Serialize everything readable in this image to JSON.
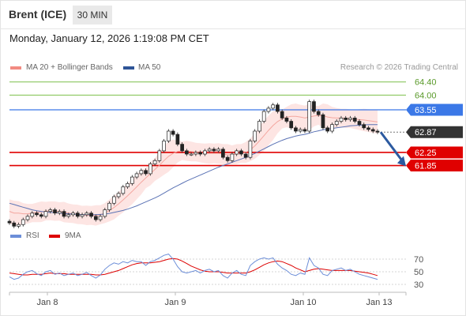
{
  "header": {
    "instrument": "Brent (ICE)",
    "timeframe": "30 MIN",
    "datetime": "Monday, January 12, 2026 1:19:08 PM CET"
  },
  "legend": {
    "bollinger": "MA 20 + Bollinger Bands",
    "ma50": "MA 50",
    "credit": "Research © 2026 Trading Central",
    "rsi": "RSI",
    "rsi_ma": "9MA"
  },
  "colors": {
    "bollinger": "#f28b82",
    "ma50": "#2f5597",
    "rsi": "#6c8ed8",
    "rsi_ma": "#dd0000",
    "resistance": "#7cbf4a",
    "pivot": "#3b78e7",
    "support": "#e00000",
    "current": "#333333",
    "arrow": "#2c5aa0"
  },
  "chart_data": [
    {
      "type": "candlestick",
      "x_ticks": [
        "Jan 8",
        "Jan 9",
        "Jan 10",
        "Jan 13"
      ],
      "ylim": [
        59.9,
        64.6
      ],
      "levels": [
        {
          "value": "64.40",
          "role": "resistance"
        },
        {
          "value": "64.00",
          "role": "resistance"
        },
        {
          "value": "63.55",
          "role": "pivot"
        },
        {
          "value": "62.87",
          "role": "current"
        },
        {
          "value": "62.25",
          "role": "support"
        },
        {
          "value": "61.85",
          "role": "support"
        }
      ],
      "close_path": [
        60.1,
        60.0,
        60.05,
        60.2,
        60.3,
        60.4,
        60.35,
        60.3,
        60.45,
        60.5,
        60.4,
        60.45,
        60.3,
        60.35,
        60.4,
        60.3,
        60.35,
        60.4,
        60.3,
        60.2,
        60.3,
        60.5,
        60.7,
        60.9,
        61.0,
        61.2,
        61.3,
        61.5,
        61.6,
        61.7,
        61.6,
        61.9,
        62.0,
        62.3,
        62.6,
        62.9,
        62.8,
        62.5,
        62.3,
        62.2,
        62.2,
        62.25,
        62.2,
        62.3,
        62.35,
        62.3,
        62.35,
        62.1,
        62.0,
        62.2,
        62.3,
        62.2,
        62.1,
        62.6,
        62.9,
        63.2,
        63.5,
        63.6,
        63.7,
        63.5,
        63.3,
        63.2,
        63.0,
        62.9,
        62.95,
        62.9,
        63.8,
        63.5,
        63.4,
        63.0,
        62.9,
        63.1,
        63.2,
        63.3,
        63.25,
        63.3,
        63.2,
        63.1,
        63.0,
        62.95,
        62.9,
        62.87
      ],
      "ma20": [
        60.45,
        60.4,
        60.4,
        60.38,
        60.38,
        60.4,
        60.42,
        60.44,
        60.46,
        60.47,
        60.46,
        60.45,
        60.43,
        60.4,
        60.38,
        60.36,
        60.34,
        60.33,
        60.33,
        60.33,
        60.35,
        60.4,
        60.48,
        60.57,
        60.68,
        60.8,
        60.93,
        61.06,
        61.2,
        61.34,
        61.47,
        61.6,
        61.73,
        61.86,
        62.0,
        62.13,
        62.22,
        62.28,
        62.3,
        62.3,
        62.28,
        62.26,
        62.24,
        62.22,
        62.22,
        62.22,
        62.22,
        62.2,
        62.18,
        62.18,
        62.2,
        62.22,
        62.25,
        62.33,
        62.45,
        62.6,
        62.76,
        62.92,
        63.07,
        63.19,
        63.27,
        63.33,
        63.35,
        63.35,
        63.33,
        63.3,
        63.33,
        63.36,
        63.38,
        63.37,
        63.33,
        63.31,
        63.3,
        63.3,
        63.29,
        63.28,
        63.26,
        63.25,
        63.24,
        63.22,
        63.2,
        63.18
      ],
      "ma50": [
        60.7,
        60.66,
        60.62,
        60.58,
        60.54,
        60.5,
        60.47,
        60.45,
        60.43,
        60.42,
        60.41,
        60.4,
        60.39,
        60.38,
        60.37,
        60.36,
        60.35,
        60.35,
        60.35,
        60.35,
        60.36,
        60.37,
        60.39,
        60.42,
        60.45,
        60.48,
        60.52,
        60.57,
        60.62,
        60.68,
        60.74,
        60.8,
        60.86,
        60.93,
        61.01,
        61.09,
        61.17,
        61.24,
        61.31,
        61.38,
        61.44,
        61.5,
        61.56,
        61.62,
        61.68,
        61.74,
        61.8,
        61.85,
        61.9,
        61.95,
        62.0,
        62.05,
        62.1,
        62.16,
        62.22,
        62.29,
        62.36,
        62.43,
        62.5,
        62.56,
        62.62,
        62.67,
        62.71,
        62.75,
        62.78,
        62.8,
        62.84,
        62.88,
        62.91,
        62.94,
        62.96,
        62.98,
        63.0,
        63.02,
        63.04,
        63.06,
        63.07,
        63.08,
        63.09,
        63.1,
        63.1,
        63.1
      ],
      "projection": {
        "from": 62.87,
        "to": 61.85
      }
    },
    {
      "type": "line",
      "name": "RSI",
      "ylim": [
        20,
        80
      ],
      "y_ticks": [
        "70",
        "50",
        "30"
      ],
      "rsi": [
        42,
        38,
        40,
        46,
        50,
        52,
        47,
        44,
        50,
        52,
        46,
        48,
        44,
        46,
        48,
        44,
        46,
        49,
        44,
        40,
        45,
        54,
        60,
        64,
        62,
        66,
        64,
        68,
        66,
        66,
        60,
        66,
        68,
        72,
        76,
        78,
        70,
        58,
        50,
        48,
        50,
        52,
        48,
        52,
        54,
        50,
        52,
        44,
        40,
        48,
        52,
        46,
        44,
        60,
        66,
        70,
        72,
        70,
        72,
        62,
        56,
        52,
        46,
        44,
        48,
        46,
        72,
        60,
        56,
        46,
        44,
        52,
        54,
        56,
        52,
        54,
        50,
        46,
        44,
        42,
        40,
        38
      ],
      "rsi_ma": [
        48,
        47,
        46,
        45,
        45,
        46,
        46,
        46,
        47,
        48,
        47,
        47,
        47,
        46,
        46,
        46,
        46,
        46,
        46,
        45,
        45,
        46,
        48,
        50,
        52,
        55,
        58,
        61,
        63,
        64,
        64,
        64,
        65,
        66,
        68,
        70,
        71,
        70,
        67,
        63,
        59,
        56,
        53,
        51,
        50,
        50,
        50,
        49,
        48,
        48,
        48,
        48,
        48,
        50,
        53,
        57,
        61,
        64,
        66,
        67,
        66,
        63,
        60,
        56,
        53,
        50,
        52,
        54,
        55,
        54,
        53,
        52,
        52,
        52,
        52,
        52,
        51,
        50,
        49,
        48,
        46,
        44
      ]
    }
  ]
}
